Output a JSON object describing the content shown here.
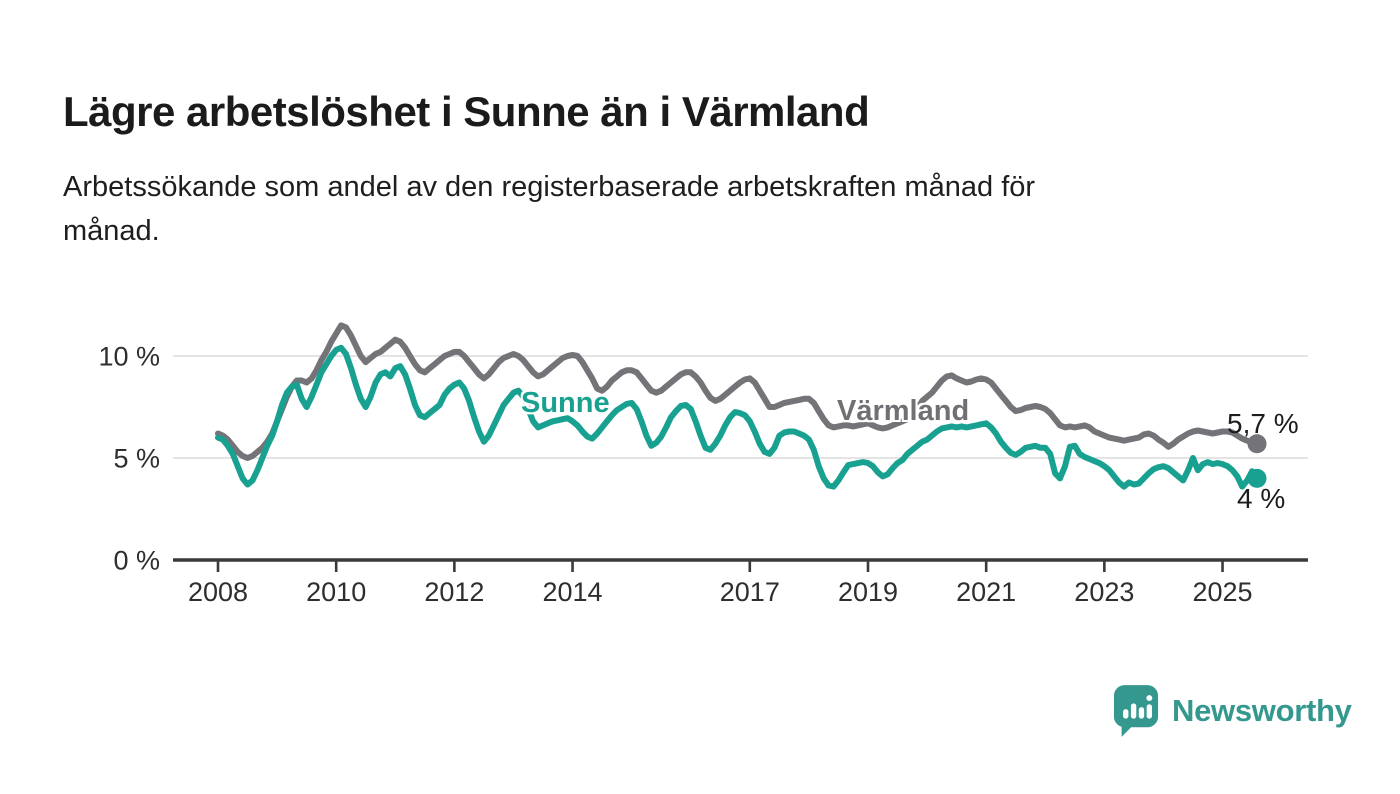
{
  "header": {
    "title": "Lägre arbetslöshet i Sunne än i Värmland",
    "subtitle": "Arbetssökande som andel av den registerbaserade arbetskraften månad för månad.",
    "subtitle_lines": [
      "Arbetssökande som andel av den registerbaserade arbetskraften månad för",
      "månad."
    ]
  },
  "chart_data": {
    "type": "line",
    "x_start": "2008-01",
    "x_end": "2025-08",
    "frequency": "monthly",
    "ylim": [
      0,
      12.25
    ],
    "grid": "horizontal-only",
    "yticks": [
      {
        "value": 0,
        "label": "0 %"
      },
      {
        "value": 5,
        "label": "5 %"
      },
      {
        "value": 10,
        "label": "10 %"
      }
    ],
    "xticks": [
      {
        "year": 2008,
        "label": "2008"
      },
      {
        "year": 2010,
        "label": "2010"
      },
      {
        "year": 2012,
        "label": "2012"
      },
      {
        "year": 2014,
        "label": "2014"
      },
      {
        "year": 2017,
        "label": "2017"
      },
      {
        "year": 2019,
        "label": "2019"
      },
      {
        "year": 2021,
        "label": "2021"
      },
      {
        "year": 2023,
        "label": "2023"
      },
      {
        "year": 2025,
        "label": "2025"
      }
    ],
    "series": [
      {
        "name": "Värmland",
        "color": "#737378",
        "end_label": "5,7 %",
        "end_value": 5.7,
        "values": [
          6.2,
          6.1,
          5.9,
          5.6,
          5.3,
          5.1,
          5.0,
          5.1,
          5.3,
          5.5,
          5.8,
          6.2,
          6.8,
          7.4,
          8.0,
          8.5,
          8.8,
          8.8,
          8.7,
          8.9,
          9.3,
          9.8,
          10.2,
          10.7,
          11.1,
          11.5,
          11.4,
          11.0,
          10.5,
          10.0,
          9.7,
          9.9,
          10.1,
          10.2,
          10.4,
          10.6,
          10.8,
          10.7,
          10.4,
          10.0,
          9.6,
          9.3,
          9.2,
          9.4,
          9.6,
          9.8,
          10.0,
          10.1,
          10.2,
          10.2,
          10.0,
          9.7,
          9.4,
          9.1,
          8.9,
          9.1,
          9.4,
          9.7,
          9.9,
          10.0,
          10.1,
          10.0,
          9.8,
          9.5,
          9.2,
          9.0,
          9.1,
          9.3,
          9.5,
          9.7,
          9.9,
          10.0,
          10.05,
          10.0,
          9.7,
          9.3,
          8.9,
          8.4,
          8.3,
          8.5,
          8.8,
          9.0,
          9.2,
          9.3,
          9.3,
          9.2,
          8.9,
          8.6,
          8.3,
          8.2,
          8.3,
          8.5,
          8.7,
          8.9,
          9.1,
          9.2,
          9.2,
          9.0,
          8.7,
          8.3,
          7.95,
          7.8,
          7.9,
          8.1,
          8.3,
          8.5,
          8.7,
          8.85,
          8.9,
          8.7,
          8.3,
          7.9,
          7.5,
          7.5,
          7.6,
          7.7,
          7.75,
          7.8,
          7.85,
          7.9,
          7.9,
          7.7,
          7.3,
          6.9,
          6.6,
          6.5,
          6.55,
          6.6,
          6.6,
          6.55,
          6.6,
          6.65,
          6.7,
          6.6,
          6.5,
          6.45,
          6.5,
          6.6,
          6.7,
          6.8,
          6.9,
          7.1,
          7.4,
          7.8,
          8.0,
          8.2,
          8.5,
          8.8,
          9.0,
          9.05,
          8.9,
          8.8,
          8.7,
          8.75,
          8.85,
          8.9,
          8.85,
          8.7,
          8.4,
          8.1,
          7.8,
          7.5,
          7.3,
          7.35,
          7.45,
          7.5,
          7.55,
          7.5,
          7.4,
          7.2,
          6.9,
          6.6,
          6.5,
          6.55,
          6.5,
          6.55,
          6.6,
          6.5,
          6.3,
          6.2,
          6.1,
          6.0,
          5.95,
          5.9,
          5.85,
          5.9,
          5.95,
          6.0,
          6.15,
          6.2,
          6.1,
          5.9,
          5.75,
          5.55,
          5.7,
          5.9,
          6.05,
          6.2,
          6.3,
          6.35,
          6.3,
          6.25,
          6.2,
          6.25,
          6.3,
          6.3,
          6.25,
          6.1,
          5.95,
          5.85,
          5.75,
          5.7
        ]
      },
      {
        "name": "Sunne",
        "color": "#18a191",
        "end_label": "4 %",
        "end_value": 4.0,
        "values": [
          6.0,
          5.9,
          5.6,
          5.2,
          4.6,
          4.0,
          3.7,
          3.9,
          4.4,
          5.0,
          5.6,
          6.1,
          6.8,
          7.6,
          8.2,
          8.5,
          8.6,
          7.9,
          7.5,
          8.0,
          8.6,
          9.2,
          9.6,
          10.0,
          10.3,
          10.4,
          10.1,
          9.4,
          8.6,
          7.9,
          7.5,
          8.0,
          8.7,
          9.1,
          9.2,
          9.0,
          9.4,
          9.5,
          9.1,
          8.4,
          7.6,
          7.1,
          7.0,
          7.2,
          7.4,
          7.6,
          8.1,
          8.4,
          8.6,
          8.7,
          8.4,
          7.8,
          7.0,
          6.3,
          5.8,
          6.1,
          6.6,
          7.1,
          7.6,
          7.9,
          8.2,
          8.3,
          8.0,
          7.4,
          6.8,
          6.5,
          6.6,
          6.7,
          6.8,
          6.85,
          6.9,
          6.95,
          6.8,
          6.6,
          6.3,
          6.05,
          5.95,
          6.2,
          6.5,
          6.8,
          7.1,
          7.35,
          7.5,
          7.65,
          7.7,
          7.4,
          6.8,
          6.1,
          5.6,
          5.75,
          6.05,
          6.5,
          7.0,
          7.3,
          7.55,
          7.6,
          7.4,
          6.8,
          6.1,
          5.5,
          5.4,
          5.7,
          6.1,
          6.6,
          7.0,
          7.25,
          7.2,
          7.1,
          6.8,
          6.3,
          5.7,
          5.3,
          5.2,
          5.5,
          6.1,
          6.25,
          6.3,
          6.3,
          6.2,
          6.1,
          5.9,
          5.4,
          4.6,
          4.0,
          3.65,
          3.6,
          3.9,
          4.3,
          4.65,
          4.7,
          4.75,
          4.8,
          4.75,
          4.6,
          4.3,
          4.1,
          4.2,
          4.5,
          4.75,
          4.9,
          5.2,
          5.4,
          5.6,
          5.8,
          5.9,
          6.1,
          6.3,
          6.45,
          6.5,
          6.55,
          6.5,
          6.55,
          6.5,
          6.55,
          6.6,
          6.65,
          6.7,
          6.5,
          6.2,
          5.8,
          5.5,
          5.25,
          5.15,
          5.3,
          5.5,
          5.55,
          5.6,
          5.5,
          5.5,
          5.2,
          4.25,
          4.0,
          4.6,
          5.55,
          5.6,
          5.2,
          5.05,
          4.95,
          4.85,
          4.75,
          4.6,
          4.4,
          4.1,
          3.8,
          3.6,
          3.8,
          3.7,
          3.75,
          4.0,
          4.25,
          4.45,
          4.55,
          4.6,
          4.5,
          4.3,
          4.1,
          3.9,
          4.4,
          5.0,
          4.4,
          4.7,
          4.8,
          4.7,
          4.75,
          4.7,
          4.6,
          4.4,
          4.1,
          3.6,
          3.9,
          4.35,
          4.0
        ]
      }
    ],
    "colors": {
      "grid": "#dcdcdc",
      "axis": "#3a3a3a",
      "tick_label": "#2e2e2e"
    }
  },
  "footer": {
    "brand": "Newsworthy",
    "brand_color": "#35988f"
  }
}
